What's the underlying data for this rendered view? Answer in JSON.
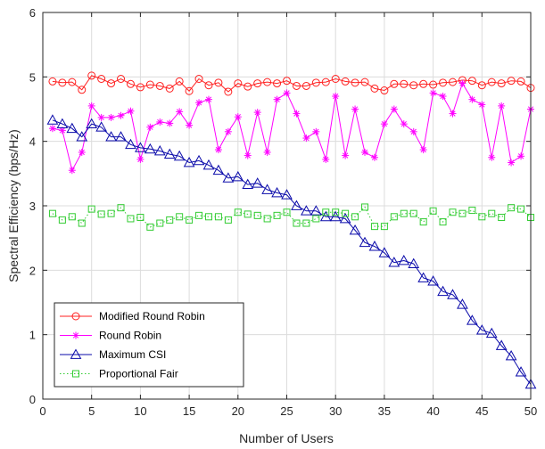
{
  "chart_data": {
    "type": "line",
    "title": "",
    "xlabel": "Number of Users",
    "ylabel": "Spectral Efficiency (bps/Hz)",
    "xlim": [
      0,
      50
    ],
    "ylim": [
      0,
      6
    ],
    "xticks": [
      "0",
      "5",
      "10",
      "15",
      "20",
      "25",
      "30",
      "35",
      "40",
      "45",
      "50"
    ],
    "yticks": [
      "0",
      "1",
      "2",
      "3",
      "4",
      "5",
      "6"
    ],
    "grid": true,
    "legend_position": "bottom-left",
    "x": [
      1,
      2,
      3,
      4,
      5,
      6,
      7,
      8,
      9,
      10,
      11,
      12,
      13,
      14,
      15,
      16,
      17,
      18,
      19,
      20,
      21,
      22,
      23,
      24,
      25,
      26,
      27,
      28,
      29,
      30,
      31,
      32,
      33,
      34,
      35,
      36,
      37,
      38,
      39,
      40,
      41,
      42,
      43,
      44,
      45,
      46,
      47,
      48,
      49,
      50
    ],
    "series": [
      {
        "name": "Modified Round Robin",
        "color": "#ff2020",
        "marker": "circle",
        "line": "solid",
        "values": [
          4.93,
          4.91,
          4.92,
          4.8,
          5.02,
          4.97,
          4.9,
          4.97,
          4.89,
          4.84,
          4.88,
          4.86,
          4.82,
          4.93,
          4.78,
          4.97,
          4.87,
          4.91,
          4.77,
          4.9,
          4.85,
          4.9,
          4.92,
          4.9,
          4.94,
          4.86,
          4.86,
          4.91,
          4.92,
          4.97,
          4.93,
          4.91,
          4.92,
          4.82,
          4.79,
          4.89,
          4.89,
          4.87,
          4.89,
          4.88,
          4.91,
          4.92,
          4.95,
          4.94,
          4.87,
          4.92,
          4.9,
          4.94,
          4.93,
          4.83
        ]
      },
      {
        "name": "Round Robin",
        "color": "#ff00ff",
        "marker": "star",
        "line": "solid",
        "values": [
          4.2,
          4.17,
          3.55,
          3.83,
          4.55,
          4.37,
          4.37,
          4.4,
          4.47,
          3.72,
          4.22,
          4.3,
          4.28,
          4.46,
          4.25,
          4.6,
          4.65,
          3.87,
          4.15,
          4.38,
          3.78,
          4.45,
          3.83,
          4.65,
          4.75,
          4.43,
          4.05,
          4.15,
          3.72,
          4.7,
          3.78,
          4.5,
          3.83,
          3.75,
          4.27,
          4.5,
          4.27,
          4.15,
          3.87,
          4.75,
          4.7,
          4.43,
          4.9,
          4.65,
          4.57,
          3.75,
          4.55,
          3.67,
          3.77,
          4.5
        ]
      },
      {
        "name": "Maximum CSI",
        "color": "#0a0aaa",
        "marker": "triangle",
        "line": "solid",
        "values": [
          4.33,
          4.27,
          4.2,
          4.07,
          4.27,
          4.22,
          4.07,
          4.07,
          3.95,
          3.9,
          3.88,
          3.85,
          3.8,
          3.77,
          3.67,
          3.7,
          3.63,
          3.55,
          3.43,
          3.45,
          3.33,
          3.35,
          3.25,
          3.2,
          3.17,
          3.0,
          2.92,
          2.92,
          2.83,
          2.83,
          2.8,
          2.62,
          2.43,
          2.37,
          2.27,
          2.12,
          2.15,
          2.1,
          1.88,
          1.83,
          1.67,
          1.62,
          1.47,
          1.22,
          1.07,
          1.02,
          0.83,
          0.67,
          0.42,
          0.23
        ]
      },
      {
        "name": "Proportional Fair",
        "color": "#33cc33",
        "marker": "square",
        "line": "dotted",
        "values": [
          2.88,
          2.78,
          2.83,
          2.73,
          2.95,
          2.87,
          2.88,
          2.97,
          2.8,
          2.82,
          2.67,
          2.73,
          2.78,
          2.83,
          2.78,
          2.85,
          2.83,
          2.83,
          2.78,
          2.9,
          2.87,
          2.85,
          2.8,
          2.85,
          2.9,
          2.73,
          2.73,
          2.8,
          2.9,
          2.9,
          2.88,
          2.83,
          2.98,
          2.68,
          2.68,
          2.83,
          2.88,
          2.88,
          2.75,
          2.92,
          2.75,
          2.9,
          2.88,
          2.93,
          2.83,
          2.88,
          2.82,
          2.97,
          2.95,
          2.82
        ]
      }
    ]
  }
}
